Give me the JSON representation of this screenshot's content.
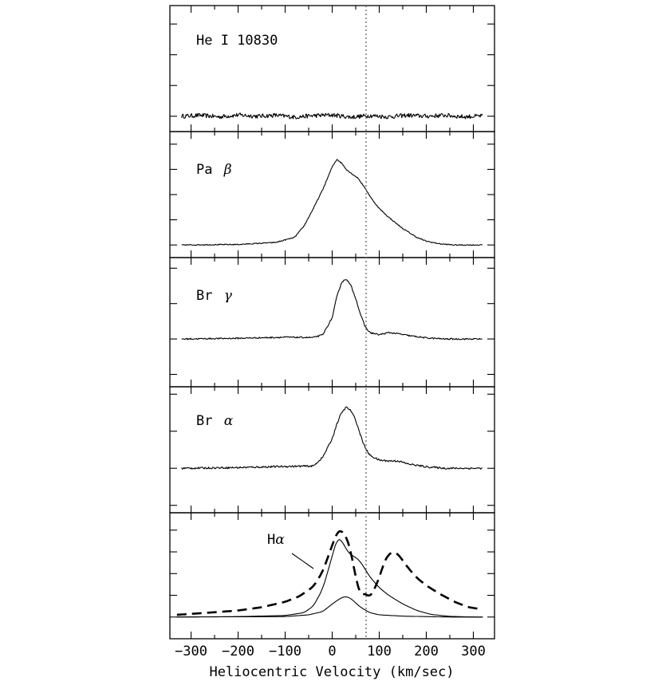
{
  "chart_data": {
    "type": "line",
    "xlabel": "Heliocentric Velocity (km/sec)",
    "xlim": [
      -345,
      345
    ],
    "xticks": [
      -300,
      -200,
      -100,
      0,
      100,
      200,
      300
    ],
    "xtick_labels": [
      "−300",
      "−200",
      "−100",
      "0",
      "100",
      "200",
      "300"
    ],
    "reference_velocity": 72,
    "panels": [
      {
        "label": "He I 10830",
        "label_parts": [
          "He I 10830",
          ""
        ],
        "ylim": [
          -0.5,
          3.6
        ],
        "series": [
          {
            "style": "solid",
            "x": [
              -320,
              -280,
              -240,
              -200,
              -160,
              -120,
              -80,
              -40,
              0,
              40,
              80,
              120,
              160,
              200,
              240,
              280,
              320
            ],
            "y": [
              0,
              0.03,
              -0.02,
              0.04,
              0,
              0.03,
              -0.03,
              0.02,
              0.04,
              -0.03,
              0.02,
              -0.02,
              0.03,
              0,
              0.03,
              -0.02,
              0.01
            ],
            "noise": 0.07
          }
        ]
      },
      {
        "label": "Pa β",
        "label_parts": [
          "Pa ",
          "β"
        ],
        "ylim": [
          -0.5,
          4.5
        ],
        "series": [
          {
            "style": "solid",
            "x": [
              -320,
              -200,
              -120,
              -80,
              -60,
              -40,
              -20,
              0,
              10,
              20,
              30,
              40,
              55,
              70,
              85,
              100,
              120,
              150,
              180,
              200,
              230,
              260,
              300,
              320
            ],
            "y": [
              0,
              0.02,
              0.1,
              0.3,
              0.75,
              1.45,
              2.2,
              3.1,
              3.4,
              3.25,
              3.0,
              2.85,
              2.65,
              2.25,
              1.8,
              1.45,
              1.1,
              0.65,
              0.3,
              0.15,
              0.04,
              0,
              0,
              0
            ],
            "noise": 0.02
          }
        ]
      },
      {
        "label": "Br γ",
        "label_parts": [
          "Br ",
          "γ"
        ],
        "ylim": [
          -1.35,
          2.3
        ],
        "series": [
          {
            "style": "solid",
            "x": [
              -320,
              -200,
              -100,
              -40,
              -20,
              0,
              10,
              20,
              30,
              40,
              50,
              60,
              70,
              80,
              100,
              120,
              140,
              160,
              200,
              240,
              280,
              320
            ],
            "y": [
              0,
              0.02,
              0.05,
              0.04,
              0.12,
              0.6,
              1.2,
              1.6,
              1.7,
              1.5,
              1.15,
              0.7,
              0.35,
              0.18,
              0.12,
              0.18,
              0.15,
              0.1,
              0.03,
              0,
              0,
              0
            ],
            "noise": 0.02
          }
        ]
      },
      {
        "label": "Br α",
        "label_parts": [
          "Br ",
          "α"
        ],
        "ylim": [
          -1.2,
          2.2
        ],
        "series": [
          {
            "style": "solid",
            "x": [
              -320,
              -200,
              -100,
              -40,
              -20,
              0,
              10,
              20,
              30,
              40,
              50,
              60,
              70,
              80,
              100,
              120,
              140,
              160,
              200,
              240,
              280,
              320
            ],
            "y": [
              0,
              0.02,
              0.05,
              0.06,
              0.3,
              0.8,
              1.2,
              1.5,
              1.65,
              1.55,
              1.3,
              0.9,
              0.55,
              0.35,
              0.22,
              0.2,
              0.2,
              0.12,
              0.04,
              0,
              0,
              0
            ],
            "noise": 0.025
          }
        ]
      },
      {
        "label": "Hα",
        "label_parts": [
          "H",
          "α"
        ],
        "ylim": [
          -1.0,
          4.8
        ],
        "series": [
          {
            "style": "dashed",
            "x": [
              -330,
              -250,
              -200,
              -150,
              -100,
              -70,
              -40,
              -20,
              0,
              10,
              20,
              30,
              40,
              50,
              60,
              70,
              80,
              90,
              100,
              110,
              120,
              130,
              140,
              150,
              160,
              180,
              200,
              230,
              260,
              290,
              320
            ],
            "y": [
              0.1,
              0.22,
              0.3,
              0.45,
              0.7,
              0.95,
              1.4,
              2.1,
              3.3,
              3.9,
              4.0,
              3.7,
              3.0,
              1.8,
              1.0,
              1.1,
              0.9,
              1.3,
              1.8,
              2.5,
              2.9,
              3.0,
              2.9,
              2.6,
              2.3,
              1.8,
              1.45,
              1.05,
              0.7,
              0.45,
              0.35
            ]
          },
          {
            "style": "solid",
            "x": [
              -330,
              -200,
              -100,
              -60,
              -40,
              -20,
              0,
              10,
              20,
              30,
              40,
              50,
              60,
              70,
              80,
              100,
              120,
              150,
              180,
              210,
              250,
              300,
              320
            ],
            "y": [
              0,
              0.02,
              0.07,
              0.2,
              0.5,
              1.3,
              2.8,
              3.6,
              3.55,
              3.1,
              2.85,
              2.75,
              2.55,
              2.2,
              1.85,
              1.35,
              1.0,
              0.6,
              0.3,
              0.12,
              0.03,
              0,
              0
            ]
          },
          {
            "style": "solid",
            "x": [
              -330,
              -100,
              -50,
              -20,
              0,
              20,
              30,
              40,
              60,
              80,
              100,
              150,
              200,
              250,
              320
            ],
            "y": [
              0,
              0.02,
              0.1,
              0.25,
              0.6,
              0.9,
              0.95,
              0.85,
              0.45,
              0.2,
              0.1,
              0.04,
              0.02,
              0,
              0
            ]
          }
        ]
      }
    ]
  }
}
